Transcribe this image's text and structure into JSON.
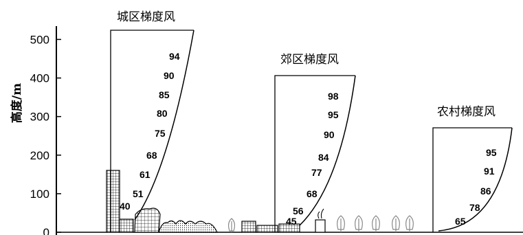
{
  "chart_data": {
    "type": "diagram",
    "ylabel": "高度/m",
    "y_ticks": [
      "0",
      "100",
      "200",
      "300",
      "400",
      "500"
    ],
    "ylim": [
      0,
      540
    ],
    "profiles": [
      {
        "title": "城区梯度风",
        "values": [
          "40",
          "51",
          "61",
          "68",
          "75",
          "80",
          "85",
          "90",
          "94"
        ]
      },
      {
        "title": "郊区梯度风",
        "values": [
          "45",
          "56",
          "68",
          "77",
          "84",
          "90",
          "95",
          "98"
        ]
      },
      {
        "title": "农村梯度风",
        "values": [
          "65",
          "78",
          "86",
          "91",
          "95"
        ]
      }
    ]
  }
}
